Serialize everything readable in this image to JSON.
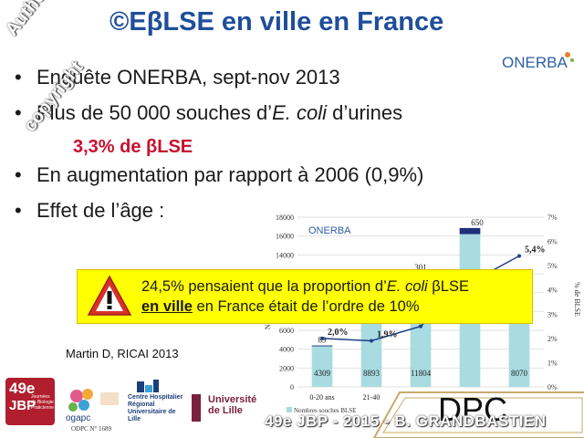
{
  "title": "©EβLSE en ville en France",
  "watermark": {
    "line1": "Author's",
    "line2": "copyright"
  },
  "logo": {
    "text": "ONERBA",
    "accent": "#2e5fa3"
  },
  "bullets": [
    {
      "dot": "•",
      "text": "Enquête ONERBA, sept-nov 2013"
    },
    {
      "dot": "•",
      "text_before": "Plus de 50 000 souches d’",
      "text_italic": "E. coli",
      "text_after": " d’urines"
    },
    {
      "dot": "•",
      "text": "En augmentation par rapport à 2006 (0,9%)"
    },
    {
      "dot": "•",
      "text": "Effet de l’âge :"
    }
  ],
  "highlight": "3,3% de βLSE",
  "alert": {
    "icon": "warning-icon",
    "line1_before": "24,5% pensaient que la proportion d’",
    "line1_italic": "E. coli",
    "line1_after": " βLSE",
    "line2_underlined": "en ville",
    "line2_after": " en France était de l’ordre de 10%"
  },
  "citation": "Martin D, RICAI 2013",
  "footer": {
    "jbp_num": "49e",
    "jbp_name": "JBP",
    "jbp_sub": "Journées de Biologie Praticienne",
    "ogapc": "ogapc",
    "odpc": "ODPC N° 1689",
    "chru": "Centre Hospitalier Régional Universitaire de Lille",
    "lille": "Université de Lille",
    "dpc": "DPC",
    "watermark": "49e JBP - 2015 - B. GRANDBASTIEN"
  },
  "chart_data": {
    "type": "bar",
    "logo": "ONERBA",
    "categories": [
      "0-20 ans",
      "21-40",
      "",
      "",
      ""
    ],
    "y_left_ticks": [
      "0",
      "2000",
      "4000",
      "6000",
      "8000",
      "10000",
      "12000",
      "14000",
      "16000",
      "18000"
    ],
    "y_right_ticks": [
      "0%",
      "1%",
      "2%",
      "3%",
      "4%",
      "5%",
      "6%",
      "7%"
    ],
    "y_left_range": [
      0,
      18000
    ],
    "y_right_range": [
      0,
      7
    ],
    "y_left_label": "Nombre",
    "y_right_label": "% de BLSE",
    "series": [
      {
        "name": "Nombres souches BLSE",
        "values": [
          4309,
          8893,
          11804,
          16200,
          8070
        ],
        "labels": [
          "4309",
          "8893",
          "11804",
          "",
          "8070"
        ],
        "color": "#a8dce0"
      },
      {
        "name": "",
        "values": [
          89,
          180,
          301,
          650,
          430
        ],
        "labels": [
          "89",
          "",
          "301",
          "650",
          ""
        ],
        "color": "#1f2f7a"
      },
      {
        "name": "% de BLSE",
        "values": [
          2.0,
          1.9,
          2.5,
          4.3,
          5.4
        ],
        "labels": [
          "2,0%",
          "1,9%",
          "2,5%",
          "",
          "5,4%"
        ],
        "color": "#1f3f8a"
      }
    ],
    "legend": [
      "Nombres souches BLSE"
    ]
  }
}
